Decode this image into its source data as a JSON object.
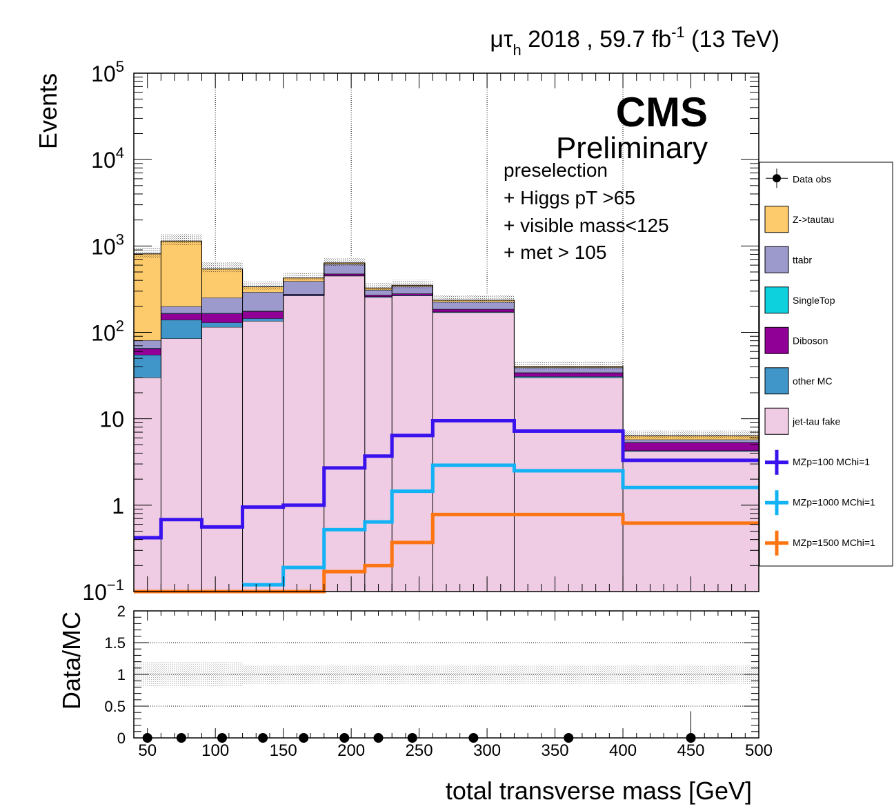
{
  "header": {
    "channel_mu": "μτ",
    "channel_sub": "h",
    "lumi_text": " 2018 , 59.7 fb",
    "lumi_exp": "-1",
    "energy": " (13 TeV)"
  },
  "cms": {
    "label": "CMS",
    "sublabel": "Preliminary"
  },
  "selection": [
    "preselection",
    "+ Higgs pT >65",
    "+ visible mass<125",
    "+ met > 105"
  ],
  "legend": {
    "entries": [
      {
        "name": "Data obs",
        "kind": "marker",
        "color": "#000000"
      },
      {
        "name": "Z->tautau",
        "kind": "box",
        "color": "#fecb6c"
      },
      {
        "name": "ttabr",
        "kind": "box",
        "color": "#9c9acc"
      },
      {
        "name": "SingleTop",
        "kind": "box",
        "color": "#0ed1de"
      },
      {
        "name": "Diboson",
        "kind": "box",
        "color": "#910096"
      },
      {
        "name": "other MC",
        "kind": "box",
        "color": "#4096c8"
      },
      {
        "name": "jet-tau fake",
        "kind": "box",
        "color": "#efcce3"
      },
      {
        "name": "MZp=100 MChi=1",
        "kind": "line",
        "color": "#3a12ee"
      },
      {
        "name": "MZp=1000 MChi=1",
        "kind": "line",
        "color": "#12b2f5"
      },
      {
        "name": "MZp=1500 MChi=1",
        "kind": "line",
        "color": "#fd7412"
      }
    ]
  },
  "chart_data": {
    "type": "bar",
    "stacked": true,
    "ylog": true,
    "bin_edges": [
      40,
      60,
      90,
      120,
      150,
      180,
      210,
      230,
      260,
      320,
      400,
      500
    ],
    "xlim": [
      40,
      500
    ],
    "ylim": [
      0.1,
      100000
    ],
    "ylabel": "Events",
    "xlabel": "total transverse mass [GeV]",
    "x_ticks": [
      50,
      100,
      150,
      200,
      250,
      300,
      350,
      400,
      450,
      500
    ],
    "y_ticks": [
      {
        "v": 100000,
        "base": "10",
        "exp": "5"
      },
      {
        "v": 10000,
        "base": "10",
        "exp": "4"
      },
      {
        "v": 1000,
        "base": "10",
        "exp": "3"
      },
      {
        "v": 100,
        "base": "10",
        "exp": "2"
      },
      {
        "v": 10,
        "base": "10",
        "exp": ""
      },
      {
        "v": 1,
        "base": "1",
        "exp": ""
      },
      {
        "v": 0.1,
        "base": "10",
        "exp": "−1"
      }
    ],
    "grid_x": [
      100,
      200,
      300,
      400
    ],
    "stack_series": [
      {
        "name": "jet-tau fake",
        "color": "#efcce3",
        "values": [
          30,
          85,
          115,
          135,
          265,
          450,
          255,
          265,
          170,
          30,
          4.2
        ]
      },
      {
        "name": "other MC",
        "color": "#4096c8",
        "values": [
          25,
          55,
          15,
          10,
          5,
          5,
          5,
          5,
          3,
          1,
          0.1
        ]
      },
      {
        "name": "Diboson",
        "color": "#910096",
        "values": [
          10,
          25,
          35,
          30,
          5,
          20,
          10,
          10,
          12,
          3,
          1
        ]
      },
      {
        "name": "SingleTop",
        "color": "#0ed1de",
        "values": [
          1,
          2,
          2,
          2,
          1,
          2,
          1,
          1,
          1,
          0.3,
          0.05
        ]
      },
      {
        "name": "ttabr",
        "color": "#9c9acc",
        "values": [
          15,
          33,
          85,
          115,
          115,
          140,
          40,
          60,
          40,
          5,
          0.4
        ]
      },
      {
        "name": "Z->tautau",
        "color": "#fecb6c",
        "values": [
          730,
          940,
          290,
          45,
          35,
          20,
          15,
          10,
          10,
          1,
          0.6
        ]
      }
    ],
    "uncertainty_frac": [
      0.2,
      0.2,
      0.2,
      0.15,
      0.15,
      0.15,
      0.15,
      0.15,
      0.15,
      0.15,
      0.15
    ],
    "signal_series": [
      {
        "name": "MZp=100 MChi=1",
        "color": "#3a12ee",
        "values": [
          0.42,
          0.68,
          0.56,
          0.95,
          1.0,
          2.7,
          3.7,
          6.4,
          9.5,
          7.2,
          3.3
        ]
      },
      {
        "name": "MZp=1000 MChi=1",
        "color": "#12b2f5",
        "values": [
          0.01,
          0.01,
          0.01,
          0.12,
          0.19,
          0.52,
          0.64,
          1.45,
          2.9,
          2.5,
          1.6
        ]
      },
      {
        "name": "MZp=1500 MChi=1",
        "color": "#fd7412",
        "values": [
          0.1,
          0.1,
          0.1,
          0.1,
          0.1,
          0.17,
          0.2,
          0.37,
          0.78,
          0.78,
          0.62
        ]
      }
    ],
    "ratio": {
      "ylabel": "Data/MC",
      "ylim": [
        0,
        2
      ],
      "y_ticks": [
        "0",
        "0.5",
        "1",
        "1.5",
        "2"
      ],
      "points": [
        {
          "x": 50,
          "y": 0,
          "err": 0
        },
        {
          "x": 75,
          "y": 0,
          "err": 0
        },
        {
          "x": 105,
          "y": 0,
          "err": 0
        },
        {
          "x": 135,
          "y": 0,
          "err": 0
        },
        {
          "x": 165,
          "y": 0,
          "err": 0
        },
        {
          "x": 195,
          "y": 0,
          "err": 0
        },
        {
          "x": 220,
          "y": 0,
          "err": 0
        },
        {
          "x": 245,
          "y": 0,
          "err": 0
        },
        {
          "x": 290,
          "y": 0,
          "err": 0
        },
        {
          "x": 360,
          "y": 0,
          "err": 0.07
        },
        {
          "x": 450,
          "y": 0,
          "err": 0.42
        }
      ]
    }
  }
}
